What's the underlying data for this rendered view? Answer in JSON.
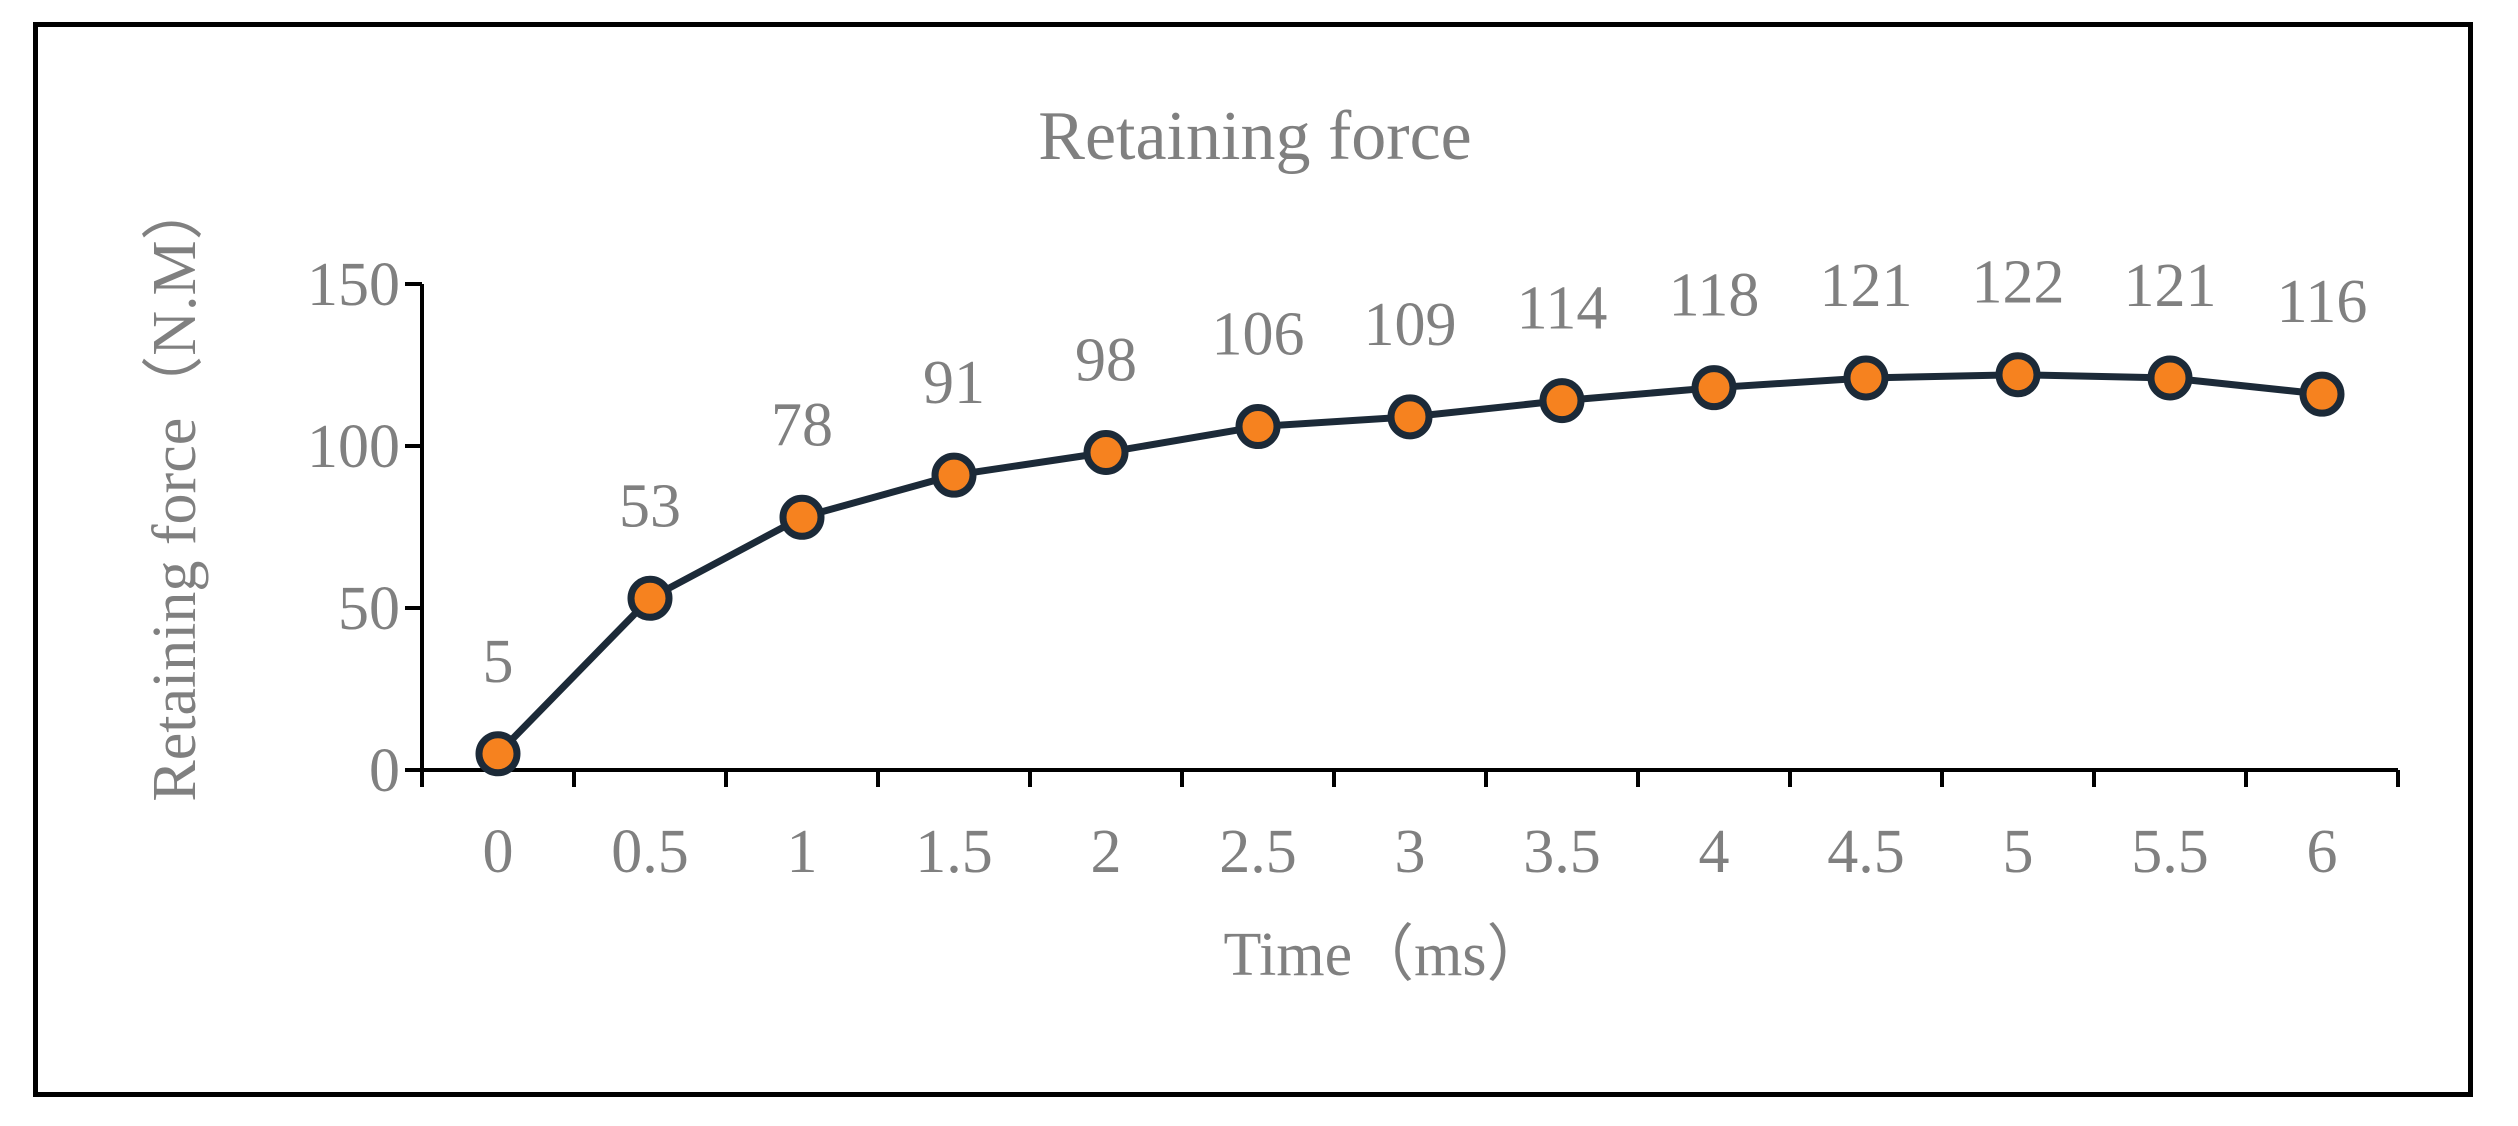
{
  "chart_data": {
    "type": "line",
    "title": "Retaining force",
    "xlabel": "Time（ms）",
    "ylabel": "Retaining force（N.M）",
    "ylim": [
      0,
      150
    ],
    "yticks": [
      "0",
      "50",
      "100",
      "150"
    ],
    "categories": [
      "0",
      "0.5",
      "1",
      "1.5",
      "2",
      "2.5",
      "3",
      "3.5",
      "4",
      "4.5",
      "5",
      "5.5",
      "6"
    ],
    "series": [
      {
        "values": [
          5,
          53,
          78,
          91,
          98,
          106,
          109,
          114,
          118,
          121,
          122,
          121,
          116
        ],
        "line_color": "#1c2a38",
        "marker_color": "#f6821f",
        "marker": "circle"
      }
    ],
    "data_labels": [
      "5",
      "53",
      "78",
      "91",
      "98",
      "106",
      "109",
      "114",
      "118",
      "121",
      "122",
      "121",
      "116"
    ],
    "grid": false,
    "legend": "none",
    "text_color": "#808080",
    "axis_color": "#000000"
  }
}
